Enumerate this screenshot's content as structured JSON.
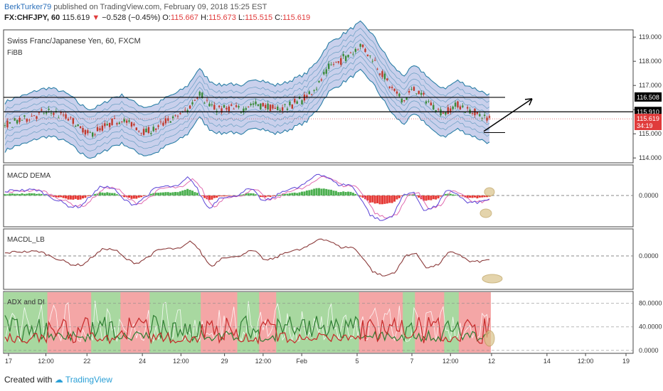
{
  "header": {
    "user": "BerkTurker79",
    "published_text": "published on TradingView.com, February 09, 2018 15:25 EST",
    "symbol": "FX:CHFJPY, 60",
    "last": "115.619",
    "arrow": "▼",
    "change": "−0.528 (−0.45%)",
    "o_label": "O:",
    "o": "115.667",
    "h_label": "H:",
    "h": "115.673",
    "l_label": "L:",
    "l": "115.515",
    "c_label": "C:",
    "c": "115.619"
  },
  "footer": {
    "created_with": "Created with",
    "brand": "TradingView"
  },
  "colors": {
    "up": "#3a8a3a",
    "down": "#c0392b",
    "band_fill": "#c9d0ec",
    "band_line": "#2b7fa6",
    "macd_up": "#4caf50",
    "macd_down": "#e53935",
    "macd_line": "#5b43d6",
    "signal_line": "#e06bb0",
    "macdl": "#8b3a3a",
    "adx_green_bg": "#a8d8a0",
    "adx_red_bg": "#f4a6a6",
    "annotation": "#d9c38a"
  },
  "chart_data": [
    {
      "type": "line",
      "title": "Swiss Franc/Japanese Yen, 60, FXCM",
      "indicator": "FiBB",
      "ylim": [
        113.8,
        119.3
      ],
      "yticks": [
        "119.000",
        "118.000",
        "117.000",
        "116.000",
        "115.000",
        "114.000"
      ],
      "price_labels": [
        "116.508",
        "115.910",
        "115.619",
        "34:19"
      ],
      "horizontal_levels": [
        116.508,
        115.91
      ],
      "close_series": [
        115.3,
        115.5,
        115.6,
        115.8,
        115.9,
        115.8,
        115.6,
        115.2,
        115.0,
        115.2,
        115.5,
        115.6,
        115.3,
        115.1,
        115.2,
        115.5,
        115.7,
        116.0,
        116.7,
        116.2,
        116.0,
        116.1,
        115.9,
        116.3,
        116.2,
        116.0,
        116.1,
        116.3,
        116.5,
        117.0,
        117.7,
        118.0,
        118.3,
        118.6,
        118.2,
        117.5,
        116.8,
        116.4,
        116.8,
        116.5,
        116.0,
        115.9,
        116.2,
        116.0,
        115.8,
        115.62
      ]
    },
    {
      "type": "bar",
      "title": "MACD DEMA",
      "yticks": [
        "0.0000"
      ]
    },
    {
      "type": "line",
      "title": "MACDL_LB",
      "yticks": [
        "0.0000"
      ]
    },
    {
      "type": "line",
      "title": "ADX and DI",
      "yticks": [
        "80.0000",
        "40.0000",
        "0.0000"
      ],
      "ylim": [
        -5,
        100
      ]
    }
  ],
  "xaxis": {
    "ticks": [
      {
        "label": "17",
        "f": 0.008
      },
      {
        "label": "12:00",
        "f": 0.068
      },
      {
        "label": "22",
        "f": 0.134
      },
      {
        "label": "24",
        "f": 0.223
      },
      {
        "label": "12:00",
        "f": 0.285
      },
      {
        "label": "29",
        "f": 0.355
      },
      {
        "label": "12:00",
        "f": 0.417
      },
      {
        "label": "Feb",
        "f": 0.479
      },
      {
        "label": "5",
        "f": 0.568
      },
      {
        "label": "7",
        "f": 0.656
      },
      {
        "label": "12:00",
        "f": 0.718
      },
      {
        "label": "12",
        "f": 0.784
      },
      {
        "label": "14",
        "f": 0.873
      },
      {
        "label": "12:00",
        "f": 0.935
      },
      {
        "label": "19",
        "f": 1.0
      }
    ]
  }
}
